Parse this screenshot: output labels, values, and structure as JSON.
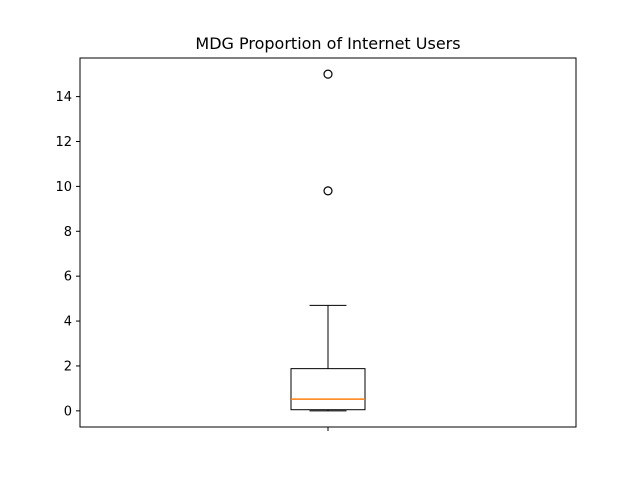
{
  "chart_data": {
    "type": "box",
    "title": "MDG Proportion of Internet Users",
    "xlabel": "",
    "ylabel": "",
    "ylim": [
      -0.72,
      15.72
    ],
    "yticks": [
      0,
      2,
      4,
      6,
      8,
      10,
      12,
      14
    ],
    "ytick_labels": [
      "0",
      "2",
      "4",
      "6",
      "8",
      "10",
      "12",
      "14"
    ],
    "grid": false,
    "box": {
      "whisker_low": 0.0,
      "q1": 0.05,
      "median": 0.52,
      "q3": 1.88,
      "whisker_high": 4.7,
      "outliers": [
        9.8,
        15.0
      ]
    },
    "colors": {
      "box_edge": "#000000",
      "median": "#ff7f0e",
      "axes": "#000000"
    }
  }
}
